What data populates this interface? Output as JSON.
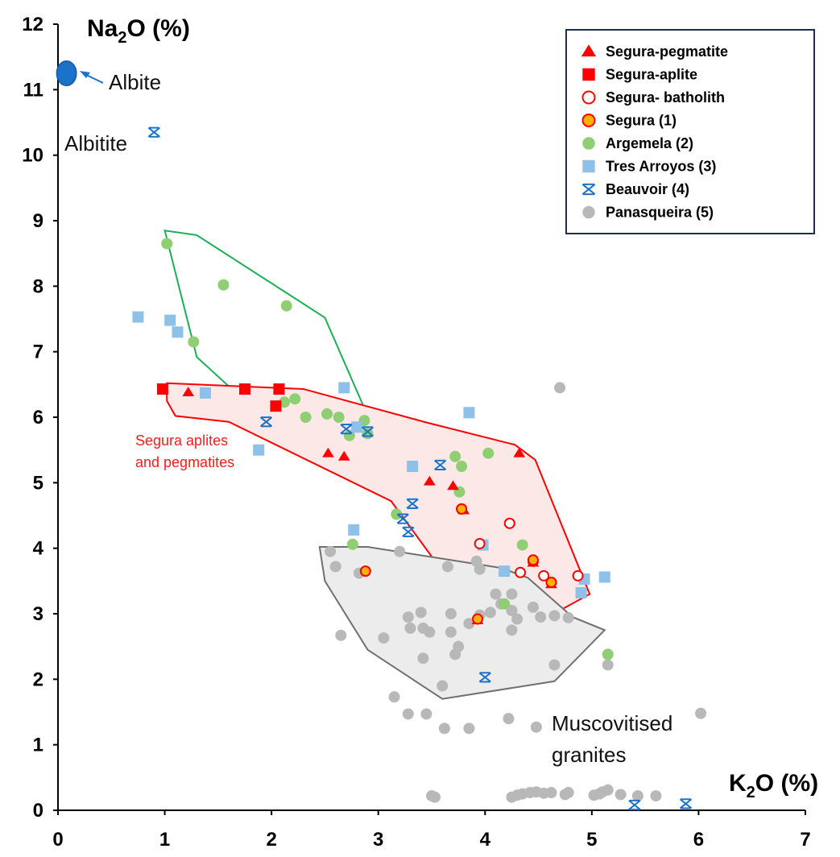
{
  "chart_data": {
    "type": "scatter",
    "xlabel": "K₂O (%)",
    "ylabel": "Na₂O (%)",
    "xlim": [
      0,
      7
    ],
    "ylim": [
      0,
      12
    ],
    "x_ticks": [
      "0",
      "1",
      "2",
      "3",
      "4",
      "5",
      "6",
      "7"
    ],
    "y_ticks": [
      "0",
      "1",
      "2",
      "3",
      "4",
      "5",
      "6",
      "7",
      "8",
      "9",
      "10",
      "11",
      "12"
    ],
    "grid": false,
    "legend_position": "top-right",
    "colors": {
      "red": "#ff0000",
      "orange": "#ffb000",
      "green": "#8fce73",
      "blue_light": "#8ec0e8",
      "blue": "#1a73c9",
      "gray": "#b8b8b8",
      "dark_blue": "#1b5fae",
      "green_line": "#1aaf54",
      "gray_line": "#707070"
    },
    "series": [
      {
        "name": "Segura-pegmatite",
        "marker": "triangle",
        "points": [
          [
            1.22,
            6.38
          ],
          [
            2.53,
            5.45
          ],
          [
            2.68,
            5.4
          ],
          [
            3.48,
            5.02
          ],
          [
            3.7,
            4.95
          ],
          [
            3.8,
            4.58
          ],
          [
            3.93,
            2.9
          ],
          [
            4.45,
            3.78
          ],
          [
            4.62,
            3.45
          ],
          [
            4.32,
            5.45
          ]
        ]
      },
      {
        "name": "Segura-aplite",
        "marker": "square",
        "points": [
          [
            0.98,
            6.43
          ],
          [
            1.75,
            6.43
          ],
          [
            2.07,
            6.43
          ],
          [
            2.04,
            6.17
          ]
        ]
      },
      {
        "name": "Segura- batholith",
        "marker": "open-circle",
        "points": [
          [
            3.78,
            4.6
          ],
          [
            3.95,
            4.07
          ],
          [
            4.23,
            4.38
          ],
          [
            4.33,
            3.63
          ],
          [
            4.55,
            3.58
          ],
          [
            4.87,
            3.58
          ],
          [
            4.45,
            3.8
          ],
          [
            4.62,
            3.48
          ]
        ]
      },
      {
        "name": "Segura (1)",
        "marker": "filled-circle",
        "points": [
          [
            2.88,
            3.65
          ],
          [
            3.78,
            4.6
          ],
          [
            3.93,
            2.92
          ],
          [
            4.45,
            3.82
          ],
          [
            4.62,
            3.48
          ]
        ]
      },
      {
        "name": "Argemela (2)",
        "marker": "circle",
        "points": [
          [
            1.02,
            8.65
          ],
          [
            1.55,
            8.02
          ],
          [
            2.14,
            7.7
          ],
          [
            1.27,
            7.15
          ],
          [
            2.12,
            6.23
          ],
          [
            2.22,
            6.28
          ],
          [
            2.32,
            6.0
          ],
          [
            2.52,
            6.05
          ],
          [
            2.63,
            6.0
          ],
          [
            2.73,
            5.72
          ],
          [
            2.87,
            5.95
          ],
          [
            2.9,
            5.75
          ],
          [
            3.72,
            5.4
          ],
          [
            3.78,
            5.25
          ],
          [
            3.76,
            4.86
          ],
          [
            4.03,
            5.45
          ],
          [
            3.17,
            4.52
          ],
          [
            2.76,
            4.06
          ],
          [
            4.35,
            4.05
          ],
          [
            4.18,
            3.15
          ],
          [
            5.15,
            2.38
          ]
        ]
      },
      {
        "name": "Tres Arroyos (3)",
        "marker": "square",
        "points": [
          [
            0.75,
            7.53
          ],
          [
            1.05,
            7.48
          ],
          [
            1.12,
            7.3
          ],
          [
            1.38,
            6.37
          ],
          [
            1.88,
            5.5
          ],
          [
            2.8,
            5.85
          ],
          [
            3.32,
            5.25
          ],
          [
            2.77,
            4.28
          ],
          [
            3.98,
            4.05
          ],
          [
            4.18,
            3.65
          ],
          [
            4.9,
            3.32
          ],
          [
            4.93,
            3.53
          ],
          [
            5.12,
            3.56
          ],
          [
            2.68,
            6.45
          ],
          [
            3.85,
            6.07
          ]
        ]
      },
      {
        "name": "Beauvoir (4)",
        "marker": "asterisk",
        "points": [
          [
            0.9,
            10.35
          ],
          [
            1.95,
            5.93
          ],
          [
            2.7,
            5.82
          ],
          [
            2.9,
            5.78
          ],
          [
            3.58,
            5.27
          ],
          [
            3.32,
            4.68
          ],
          [
            3.23,
            4.45
          ],
          [
            3.28,
            4.25
          ],
          [
            4.0,
            2.03
          ],
          [
            5.4,
            0.08
          ],
          [
            5.88,
            0.1
          ]
        ]
      },
      {
        "name": "Panasqueira (5)",
        "marker": "circle",
        "points": [
          [
            4.7,
            6.45
          ],
          [
            2.55,
            3.95
          ],
          [
            2.6,
            3.72
          ],
          [
            2.82,
            3.62
          ],
          [
            3.2,
            3.95
          ],
          [
            3.65,
            3.72
          ],
          [
            3.4,
            3.02
          ],
          [
            3.68,
            3.0
          ],
          [
            3.28,
            2.95
          ],
          [
            3.3,
            2.78
          ],
          [
            3.42,
            2.78
          ],
          [
            3.48,
            2.72
          ],
          [
            3.68,
            2.72
          ],
          [
            3.85,
            2.85
          ],
          [
            3.95,
            2.98
          ],
          [
            4.05,
            3.02
          ],
          [
            4.15,
            3.15
          ],
          [
            4.25,
            3.05
          ],
          [
            4.3,
            2.92
          ],
          [
            4.45,
            3.1
          ],
          [
            4.52,
            2.95
          ],
          [
            4.65,
            2.97
          ],
          [
            4.78,
            2.94
          ],
          [
            3.75,
            2.5
          ],
          [
            3.72,
            2.38
          ],
          [
            3.42,
            2.32
          ],
          [
            2.65,
            2.67
          ],
          [
            3.05,
            2.63
          ],
          [
            4.25,
            2.75
          ],
          [
            3.6,
            1.9
          ],
          [
            4.65,
            2.22
          ],
          [
            5.15,
            2.22
          ],
          [
            3.15,
            1.73
          ],
          [
            3.28,
            1.47
          ],
          [
            3.45,
            1.47
          ],
          [
            3.62,
            1.25
          ],
          [
            3.85,
            1.25
          ],
          [
            4.22,
            1.4
          ],
          [
            4.48,
            1.27
          ],
          [
            6.02,
            1.48
          ],
          [
            3.5,
            0.22
          ],
          [
            3.53,
            0.2
          ],
          [
            4.25,
            0.2
          ],
          [
            4.3,
            0.23
          ],
          [
            4.35,
            0.25
          ],
          [
            4.42,
            0.27
          ],
          [
            4.48,
            0.28
          ],
          [
            4.55,
            0.26
          ],
          [
            4.62,
            0.27
          ],
          [
            4.75,
            0.24
          ],
          [
            4.78,
            0.27
          ],
          [
            5.02,
            0.23
          ],
          [
            5.07,
            0.25
          ],
          [
            5.1,
            0.28
          ],
          [
            5.15,
            0.31
          ],
          [
            5.27,
            0.24
          ],
          [
            5.43,
            0.22
          ],
          [
            5.6,
            0.22
          ],
          [
            3.92,
            3.8
          ],
          [
            3.95,
            3.68
          ],
          [
            4.25,
            3.3
          ],
          [
            4.1,
            3.3
          ]
        ]
      },
      {
        "name": "Albite",
        "marker": "ellipse",
        "points": [
          [
            0.08,
            11.25
          ]
        ]
      }
    ],
    "polygons": [
      {
        "name": "Argemela field",
        "color": "green_line",
        "fill": "none",
        "points": [
          [
            1.0,
            8.85
          ],
          [
            1.3,
            8.78
          ],
          [
            2.5,
            7.52
          ],
          [
            2.88,
            6.1
          ],
          [
            3.88,
            5.63
          ],
          [
            4.2,
            5.42
          ],
          [
            3.98,
            4.52
          ],
          [
            4.45,
            4.05
          ],
          [
            4.45,
            3.75
          ],
          [
            4.18,
            3.75
          ],
          [
            2.55,
            5.6
          ],
          [
            2.05,
            5.8
          ],
          [
            1.3,
            6.92
          ]
        ]
      },
      {
        "name": "Segura aplites and pegmatites",
        "color": "red",
        "fill": "#fde8e8",
        "points": [
          [
            1.02,
            6.52
          ],
          [
            2.3,
            6.43
          ],
          [
            3.45,
            5.92
          ],
          [
            4.28,
            5.58
          ],
          [
            4.47,
            5.35
          ],
          [
            4.98,
            3.3
          ],
          [
            4.05,
            2.47
          ],
          [
            3.78,
            3.25
          ],
          [
            3.12,
            4.72
          ],
          [
            1.6,
            5.93
          ],
          [
            1.1,
            6.02
          ],
          [
            1.02,
            6.25
          ]
        ]
      },
      {
        "name": "Muscovitised granites",
        "color": "gray_line",
        "fill": "#ececec",
        "points": [
          [
            2.45,
            4.02
          ],
          [
            2.5,
            3.5
          ],
          [
            2.9,
            2.45
          ],
          [
            3.6,
            1.7
          ],
          [
            4.65,
            1.97
          ],
          [
            5.12,
            2.75
          ],
          [
            4.82,
            2.95
          ],
          [
            4.4,
            3.55
          ],
          [
            4.15,
            3.7
          ],
          [
            2.9,
            4.02
          ]
        ]
      }
    ],
    "annotations": {
      "albite": "Albite",
      "albitite": "Albitite",
      "segura_line1": "Segura aplites",
      "segura_line2": "and pegmatites",
      "musc_line1": "Muscovitised",
      "musc_line2": "granites"
    }
  }
}
